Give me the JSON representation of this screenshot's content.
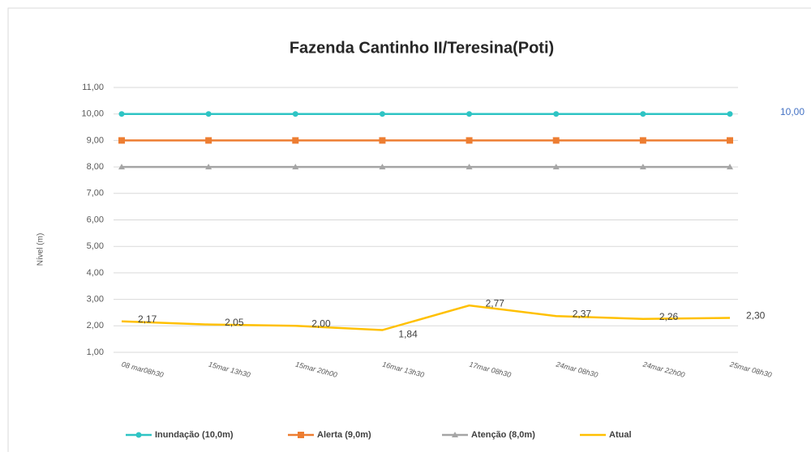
{
  "chart_data": {
    "type": "line",
    "title": "Fazenda Cantinho II/Teresina(Poti)",
    "y_label": "Nível (m)",
    "categories": [
      "08 mar08h30",
      "15mar 13h30",
      "15mar 20h00",
      "16mar 13h30",
      "17mar 08h30",
      "24mar 08h30",
      "24mar 22h00",
      "25mar 08h30"
    ],
    "series": [
      {
        "name": "Inundação (10,0m)",
        "color": "#2ec4c4",
        "marker": "circle",
        "values": [
          10,
          10,
          10,
          10,
          10,
          10,
          10,
          10
        ],
        "value_labels": [
          null,
          null,
          null,
          null,
          null,
          null,
          null,
          "10,00"
        ],
        "label_color": "#4472c4"
      },
      {
        "name": "Alerta (9,0m)",
        "color": "#ed7d31",
        "marker": "square",
        "values": [
          9,
          9,
          9,
          9,
          9,
          9,
          9,
          9
        ]
      },
      {
        "name": "Atenção (8,0m)",
        "color": "#a5a5a5",
        "marker": "triangle",
        "values": [
          8,
          8,
          8,
          8,
          8,
          8,
          8,
          8
        ]
      },
      {
        "name": "Atual",
        "color": "#ffc000",
        "values": [
          2.17,
          2.05,
          2.0,
          1.84,
          2.77,
          2.37,
          2.26,
          2.3
        ],
        "value_labels": [
          "2,17",
          "2,05",
          "2,00",
          "1,84",
          "2,77",
          "2,37",
          "2,26",
          "2,30"
        ],
        "label_color": "#404040"
      }
    ],
    "ylim": [
      1,
      11
    ],
    "yticks": [
      {
        "value": 1,
        "label": "1,00"
      },
      {
        "value": 2,
        "label": "2,00"
      },
      {
        "value": 3,
        "label": "3,00"
      },
      {
        "value": 4,
        "label": "4,00"
      },
      {
        "value": 5,
        "label": "5,00"
      },
      {
        "value": 6,
        "label": "6,00"
      },
      {
        "value": 7,
        "label": "7,00"
      },
      {
        "value": 8,
        "label": "8,00"
      },
      {
        "value": 9,
        "label": "9,00"
      },
      {
        "value": 10,
        "label": "10,00"
      },
      {
        "value": 11,
        "label": "11,00"
      }
    ],
    "grid": true,
    "legend": "bottom"
  }
}
